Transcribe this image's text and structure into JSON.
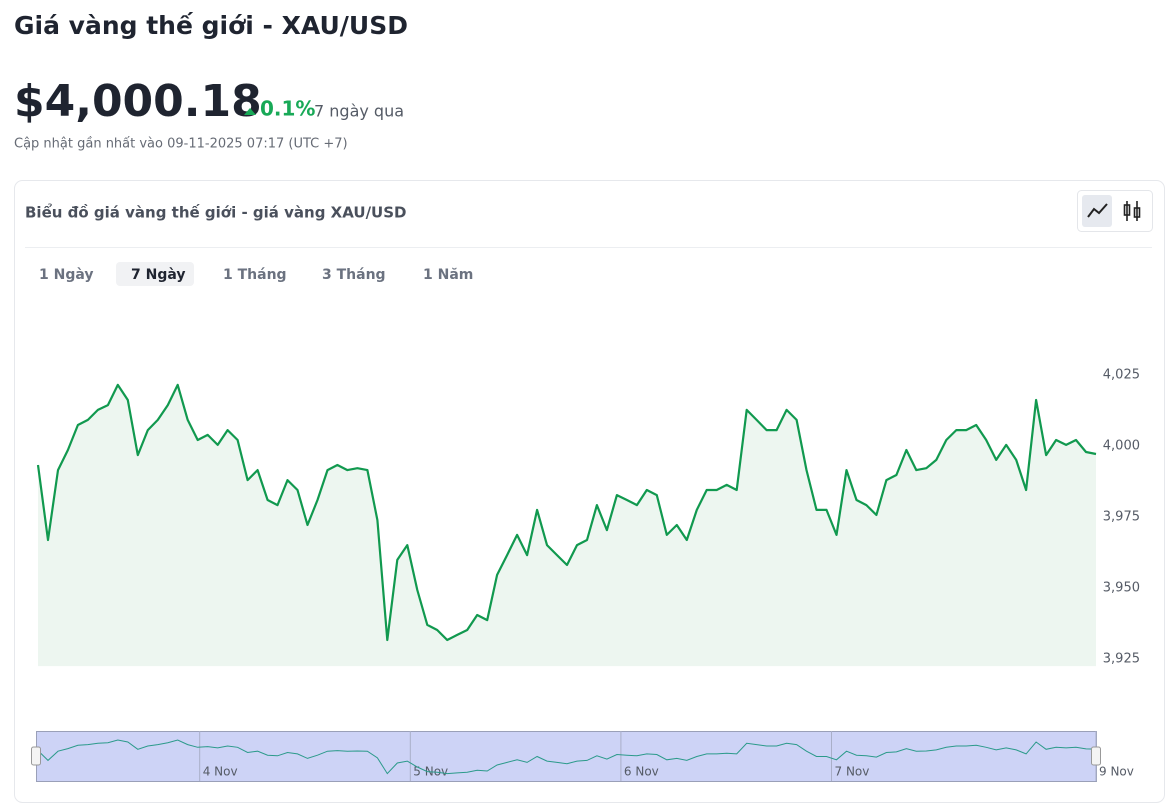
{
  "header": {
    "title": "Giá vàng thế giới - XAU/USD",
    "price": "$4,000.18",
    "change": "0.1%",
    "period": "7 ngày qua",
    "updated": "Cập nhật gần nhất vào 09-11-2025 07:17 (UTC +7)"
  },
  "card": {
    "title": "Biểu đồ giá vàng thế giới - giá vàng XAU/USD",
    "ranges": [
      "1 Ngày",
      "7 Ngày",
      "1 Tháng",
      "3 Tháng",
      "1 Năm"
    ],
    "active_range": 1
  },
  "chart_data": {
    "type": "line",
    "color": "#11994f",
    "x": [
      0,
      1,
      2,
      3,
      4,
      5,
      6,
      7,
      8,
      9,
      10,
      11,
      12,
      13,
      14,
      15,
      16,
      17,
      18,
      19,
      20,
      21,
      22,
      23,
      24,
      25,
      26,
      27,
      28,
      29,
      30,
      31,
      32,
      33,
      34,
      35,
      36,
      37,
      38,
      39,
      40,
      41,
      42,
      43,
      44,
      45,
      46,
      47,
      48,
      49,
      50,
      51,
      52,
      53,
      54,
      55,
      56,
      57,
      58,
      59,
      60,
      61,
      62,
      63,
      64,
      65,
      66,
      67,
      68,
      69,
      70,
      71,
      72,
      73,
      74,
      75,
      76,
      77,
      78,
      79,
      80,
      81,
      82,
      83,
      84,
      85,
      86,
      87,
      88,
      89,
      90,
      91,
      92,
      93,
      94,
      95,
      96,
      97,
      98,
      99,
      100,
      101,
      102,
      103,
      104,
      105,
      106
    ],
    "values": [
      3993.3,
      3966.9,
      3991.5,
      3998.6,
      4007.4,
      4009.2,
      4012.7,
      4014.4,
      4021.5,
      4016.2,
      3996.8,
      4005.6,
      4009.2,
      4014.4,
      4021.5,
      4009.2,
      4002.1,
      4003.9,
      4000.4,
      4005.6,
      4002.1,
      3988.0,
      3991.5,
      3981.0,
      3979.2,
      3988.0,
      3984.5,
      3972.2,
      3981.0,
      3991.5,
      3993.3,
      3991.5,
      3992.2,
      3991.5,
      3973.9,
      3931.7,
      3959.9,
      3965.1,
      3949.3,
      3937.0,
      3935.2,
      3931.7,
      3933.5,
      3935.2,
      3940.5,
      3938.7,
      3954.6,
      3961.6,
      3968.7,
      3961.6,
      3977.5,
      3965.1,
      3961.6,
      3958.1,
      3965.1,
      3966.9,
      3979.2,
      3970.4,
      3982.7,
      3981.0,
      3979.2,
      3984.5,
      3982.7,
      3968.7,
      3972.2,
      3966.9,
      3977.5,
      3984.5,
      3984.5,
      3986.3,
      3984.5,
      4012.7,
      4009.2,
      4005.6,
      4005.6,
      4012.7,
      4009.2,
      3991.5,
      3977.5,
      3977.5,
      3968.7,
      3991.5,
      3981.0,
      3979.2,
      3975.7,
      3988.0,
      3989.8,
      3998.6,
      3991.5,
      3992.2,
      3995.1,
      4002.1,
      4005.6,
      4005.6,
      4007.4,
      4002.1,
      3995.1,
      4000.4,
      3995.1,
      3984.5,
      4016.2,
      3996.8,
      4002.1,
      4000.4,
      4002.1,
      3997.9,
      3997.2
    ],
    "xlim": [
      0,
      106
    ],
    "ylim": [
      3922.5,
      4035
    ],
    "yticks": [
      {
        "value": 4025,
        "label": "4,025"
      },
      {
        "value": 4000,
        "label": "4,000"
      },
      {
        "value": 3975,
        "label": "3,975"
      },
      {
        "value": 3950,
        "label": "3,950"
      },
      {
        "value": 3925,
        "label": "3,925"
      }
    ],
    "navigator_xticks": [
      {
        "value": 16.2,
        "label": "4 Nov"
      },
      {
        "value": 37.3,
        "label": "5 Nov"
      },
      {
        "value": 58.4,
        "label": "6 Nov"
      },
      {
        "value": 79.5,
        "label": "7 Nov"
      },
      {
        "value": 106,
        "label": "9 Nov"
      }
    ]
  }
}
